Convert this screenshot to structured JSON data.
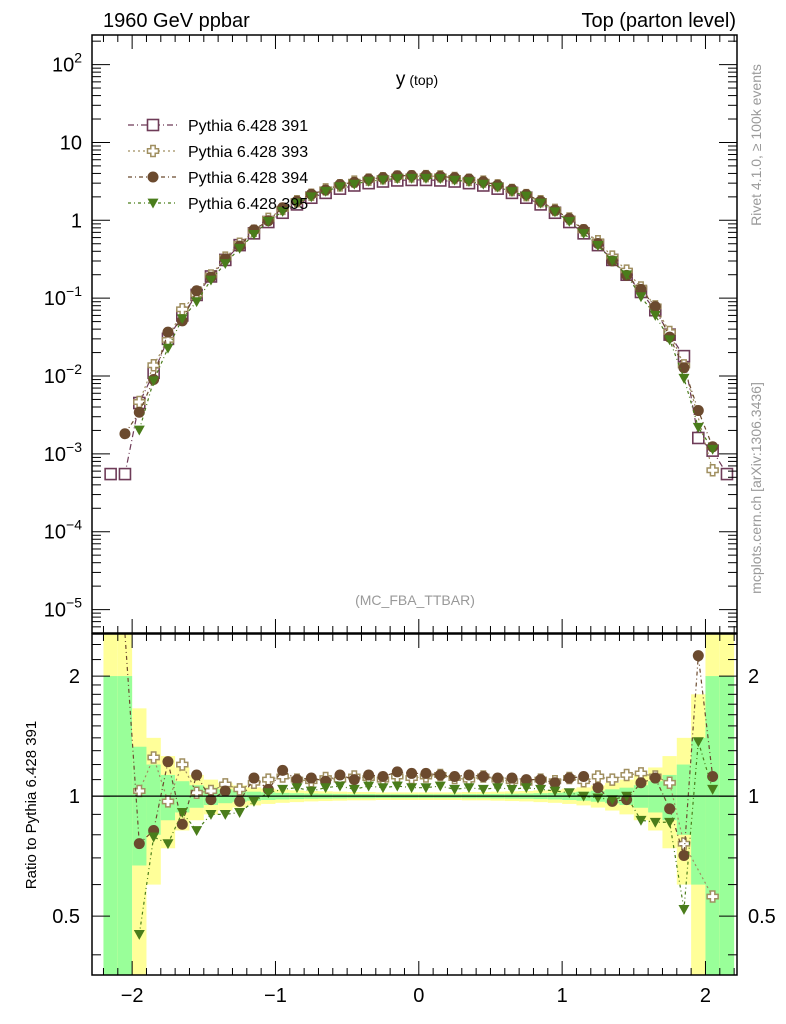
{
  "header": {
    "left": "1960 GeV ppbar",
    "right": "Top (parton level)"
  },
  "side_text": {
    "rivet": "Rivet 4.1.0, ≥ 100k events",
    "mcplots": "mcplots.cern.ch [arXiv:1306.3436]"
  },
  "chart_data": {
    "type": "scatter",
    "title": "y",
    "title_sub": "(top)",
    "analysis": "(MC_FBA_TTBAR)",
    "xlabel": "",
    "xlim": [
      -2.28,
      2.22
    ],
    "x_ticks": [
      {
        "v": -2,
        "label": "−2"
      },
      {
        "v": -1,
        "label": "−1"
      },
      {
        "v": 0,
        "label": "0"
      },
      {
        "v": 1,
        "label": "1"
      },
      {
        "v": 2,
        "label": "2"
      }
    ],
    "bin_edges_range": [
      -2.2,
      2.2
    ],
    "bin_width": 0.1,
    "x": [
      -2.15,
      -2.05,
      -1.95,
      -1.85,
      -1.75,
      -1.65,
      -1.55,
      -1.45,
      -1.35,
      -1.25,
      -1.15,
      -1.05,
      -0.95,
      -0.85,
      -0.75,
      -0.65,
      -0.55,
      -0.45,
      -0.35,
      -0.25,
      -0.15,
      -0.05,
      0.05,
      0.15,
      0.25,
      0.35,
      0.45,
      0.55,
      0.65,
      0.75,
      0.85,
      0.95,
      1.05,
      1.15,
      1.25,
      1.35,
      1.45,
      1.55,
      1.65,
      1.75,
      1.85,
      1.95,
      2.05,
      2.15
    ],
    "main": {
      "yscale": "log",
      "ylim": [
        5e-06,
        240
      ],
      "y_ticks": [
        {
          "v": 100,
          "base": "10",
          "exp": "2"
        },
        {
          "v": 10,
          "base": "10",
          "exp": ""
        },
        {
          "v": 1,
          "base": "1",
          "exp": ""
        },
        {
          "v": 0.1,
          "base": "10",
          "exp": "−1"
        },
        {
          "v": 0.01,
          "base": "10",
          "exp": "−2"
        },
        {
          "v": 0.001,
          "base": "10",
          "exp": "−3"
        },
        {
          "v": 0.0001,
          "base": "10",
          "exp": "−4"
        },
        {
          "v": 1e-05,
          "base": "10",
          "exp": "−5"
        }
      ],
      "reference_values": [
        0.00055,
        0.00055,
        0.0045,
        0.011,
        0.03,
        0.06,
        0.11,
        0.19,
        0.31,
        0.48,
        0.68,
        0.95,
        1.25,
        1.6,
        1.95,
        2.25,
        2.55,
        2.8,
        3.0,
        3.15,
        3.25,
        3.3,
        3.3,
        3.25,
        3.15,
        3.0,
        2.8,
        2.55,
        2.25,
        1.95,
        1.6,
        1.25,
        0.95,
        0.68,
        0.48,
        0.31,
        0.2,
        0.12,
        0.07,
        0.034,
        0.018,
        0.0016,
        0.0011,
        0.00055
      ]
    },
    "ratio": {
      "ylabel": "Ratio to Pythia 6.428 391",
      "yscale": "log",
      "ylim": [
        0.356,
        2.55
      ],
      "y_ticks": [
        {
          "v": 2,
          "label": "2"
        },
        {
          "v": 1,
          "label": "1"
        },
        {
          "v": 0.5,
          "label": "0.5"
        }
      ],
      "ref_rel_stat_err": [
        1.0,
        1.0,
        0.33,
        0.2,
        0.13,
        0.09,
        0.065,
        0.05,
        0.04,
        0.032,
        0.026,
        0.022,
        0.019,
        0.017,
        0.015,
        0.014,
        0.013,
        0.012,
        0.012,
        0.011,
        0.011,
        0.011,
        0.011,
        0.011,
        0.011,
        0.012,
        0.012,
        0.013,
        0.014,
        0.015,
        0.017,
        0.019,
        0.022,
        0.026,
        0.032,
        0.04,
        0.05,
        0.065,
        0.09,
        0.13,
        0.2,
        0.4,
        1.0,
        1.0
      ],
      "band_colors": {
        "inner": "#99ff99",
        "outer": "#ffff99"
      }
    },
    "series": [
      {
        "name": "Pythia 6.428 391",
        "marker": "open-square",
        "color": "#6e3b58",
        "ratio": [
          1,
          1,
          1,
          1,
          1,
          1,
          1,
          1,
          1,
          1,
          1,
          1,
          1,
          1,
          1,
          1,
          1,
          1,
          1,
          1,
          1,
          1,
          1,
          1,
          1,
          1,
          1,
          1,
          1,
          1,
          1,
          1,
          1,
          1,
          1,
          1,
          1,
          1,
          1,
          1,
          1,
          1,
          1,
          1
        ]
      },
      {
        "name": "Pythia 6.428 393",
        "marker": "open-cross",
        "color": "#a08f60",
        "ratio": [
          null,
          null,
          1.03,
          1.25,
          0.97,
          1.2,
          1.02,
          1.03,
          1.07,
          1.04,
          1.08,
          1.1,
          1.12,
          1.1,
          1.09,
          1.11,
          1.1,
          1.12,
          1.11,
          1.1,
          1.12,
          1.11,
          1.12,
          1.13,
          1.11,
          1.1,
          1.12,
          1.1,
          1.09,
          1.08,
          1.1,
          1.09,
          1.11,
          1.09,
          1.12,
          1.1,
          1.13,
          1.14,
          1.12,
          1.08,
          0.76,
          null,
          0.56,
          null
        ]
      },
      {
        "name": "Pythia 6.428 394",
        "marker": "filled-circle",
        "color": "#6b4a2e",
        "ratio": [
          null,
          3.3,
          0.76,
          0.82,
          1.22,
          0.85,
          1.13,
          0.98,
          1.03,
          0.97,
          1.11,
          1.04,
          1.16,
          1.1,
          1.11,
          1.09,
          1.13,
          1.1,
          1.13,
          1.12,
          1.15,
          1.14,
          1.14,
          1.13,
          1.12,
          1.13,
          1.12,
          1.11,
          1.11,
          1.1,
          1.1,
          1.08,
          1.11,
          1.12,
          1.05,
          0.97,
          0.98,
          1.08,
          1.11,
          0.93,
          0.71,
          2.25,
          1.12,
          null
        ]
      },
      {
        "name": "Pythia 6.428 395",
        "marker": "filled-triangle-down",
        "color": "#4a7d1b",
        "ratio": [
          null,
          null,
          0.45,
          0.79,
          0.76,
          0.91,
          0.82,
          0.9,
          0.9,
          0.91,
          0.97,
          1.02,
          1.04,
          1.05,
          1.03,
          1.05,
          1.06,
          1.04,
          1.06,
          1.05,
          1.06,
          1.05,
          1.05,
          1.06,
          1.04,
          1.05,
          1.04,
          1.05,
          1.04,
          1.05,
          1.04,
          1.03,
          1.02,
          1.0,
          0.99,
          0.98,
          1.0,
          0.87,
          0.86,
          0.86,
          0.52,
          1.37,
          1.04,
          null
        ]
      }
    ]
  }
}
